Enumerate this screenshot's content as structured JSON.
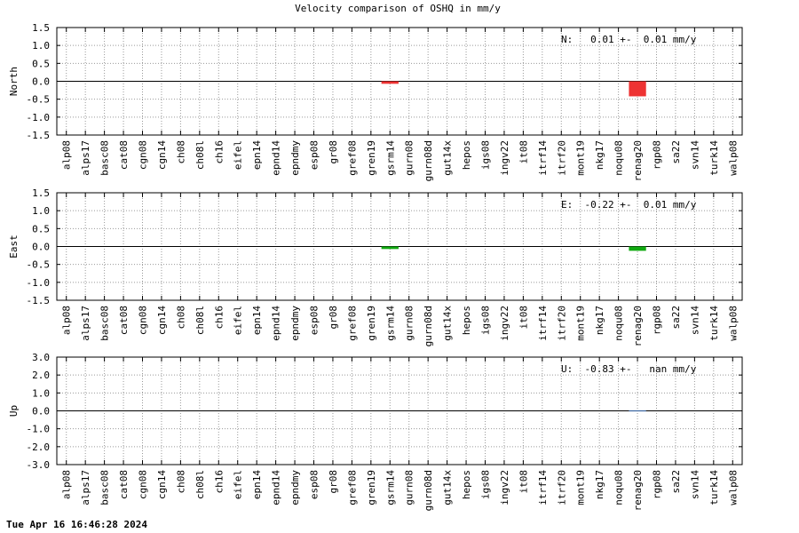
{
  "chart_data": [
    {
      "type": "bar",
      "title": "Velocity comparison of OSHQ in mm/y",
      "ylabel": "North",
      "annotation": "N:   0.01 +-  0.01 mm/y",
      "categories": [
        "alp08",
        "alps17",
        "basc08",
        "cat08",
        "cgn08",
        "cgn14",
        "ch08",
        "ch08l",
        "ch16",
        "eifel",
        "epn14",
        "epnd14",
        "epndmy",
        "esp08",
        "gr08",
        "gref08",
        "gren19",
        "gsrm14",
        "gurn08",
        "gurn08d",
        "gut14x",
        "hepos",
        "igs08",
        "ingv22",
        "it08",
        "itrf14",
        "itrf20",
        "mont19",
        "nkg17",
        "noqu08",
        "renag20",
        "rgp08",
        "sa22",
        "svn14",
        "turk14",
        "walp08"
      ],
      "values": [
        null,
        null,
        null,
        null,
        null,
        null,
        null,
        null,
        null,
        null,
        null,
        null,
        null,
        null,
        null,
        null,
        null,
        -0.07,
        null,
        null,
        null,
        null,
        null,
        null,
        null,
        null,
        null,
        null,
        null,
        null,
        -0.42,
        null,
        null,
        null,
        null,
        null
      ],
      "color": "#ee3333",
      "ylim": [
        -1.5,
        1.5
      ],
      "yticks": [
        -1.5,
        {
          "value": -1.0,
          "label": "-1.0"
        },
        -0.5,
        {
          "value": 0,
          "label": "0.0"
        },
        0.5,
        {
          "value": 1.0,
          "label": "1.0"
        },
        1.5
      ],
      "grid": true
    },
    {
      "type": "bar",
      "ylabel": "East",
      "annotation": "E:  -0.22 +-  0.01 mm/y",
      "categories": [
        "alp08",
        "alps17",
        "basc08",
        "cat08",
        "cgn08",
        "cgn14",
        "ch08",
        "ch08l",
        "ch16",
        "eifel",
        "epn14",
        "epnd14",
        "epndmy",
        "esp08",
        "gr08",
        "gref08",
        "gren19",
        "gsrm14",
        "gurn08",
        "gurn08d",
        "gut14x",
        "hepos",
        "igs08",
        "ingv22",
        "it08",
        "itrf14",
        "itrf20",
        "mont19",
        "nkg17",
        "noqu08",
        "renag20",
        "rgp08",
        "sa22",
        "svn14",
        "turk14",
        "walp08"
      ],
      "values": [
        null,
        null,
        null,
        null,
        null,
        null,
        null,
        null,
        null,
        null,
        null,
        null,
        null,
        null,
        null,
        null,
        null,
        -0.07,
        null,
        null,
        null,
        null,
        null,
        null,
        null,
        null,
        null,
        null,
        null,
        null,
        -0.12,
        null,
        null,
        null,
        null,
        null
      ],
      "color": "#11aa11",
      "ylim": [
        -1.5,
        1.5
      ],
      "yticks": [
        -1.5,
        {
          "value": -1.0,
          "label": "-1.0"
        },
        -0.5,
        {
          "value": 0,
          "label": "0.0"
        },
        0.5,
        {
          "value": 1.0,
          "label": "1.0"
        },
        1.5
      ],
      "grid": true
    },
    {
      "type": "bar",
      "ylabel": "Up",
      "annotation": "U:  -0.83 +-   nan mm/y",
      "categories": [
        "alp08",
        "alps17",
        "basc08",
        "cat08",
        "cgn08",
        "cgn14",
        "ch08",
        "ch08l",
        "ch16",
        "eifel",
        "epn14",
        "epnd14",
        "epndmy",
        "esp08",
        "gr08",
        "gref08",
        "gren19",
        "gsrm14",
        "gurn08",
        "gurn08d",
        "gut14x",
        "hepos",
        "igs08",
        "ingv22",
        "it08",
        "itrf14",
        "itrf20",
        "mont19",
        "nkg17",
        "noqu08",
        "renag20",
        "rgp08",
        "sa22",
        "svn14",
        "turk14",
        "walp08"
      ],
      "values": [
        null,
        null,
        null,
        null,
        null,
        null,
        null,
        null,
        null,
        null,
        null,
        null,
        null,
        null,
        null,
        null,
        null,
        null,
        null,
        null,
        null,
        null,
        null,
        null,
        null,
        null,
        null,
        null,
        null,
        null,
        0.02,
        null,
        null,
        null,
        null,
        null
      ],
      "color": "#3366aa",
      "ylim": [
        -3,
        3
      ],
      "yticks": [
        {
          "value": -3,
          "label": "-3.0"
        },
        {
          "value": -2,
          "label": "-2.0"
        },
        {
          "value": -1,
          "label": "-1.0"
        },
        {
          "value": 0,
          "label": "0.0"
        },
        {
          "value": 1,
          "label": "1.0"
        },
        {
          "value": 2,
          "label": "2.0"
        },
        {
          "value": 3,
          "label": "3.0"
        }
      ],
      "grid": true
    }
  ],
  "timestamp": "Tue Apr 16 16:46:28 2024"
}
